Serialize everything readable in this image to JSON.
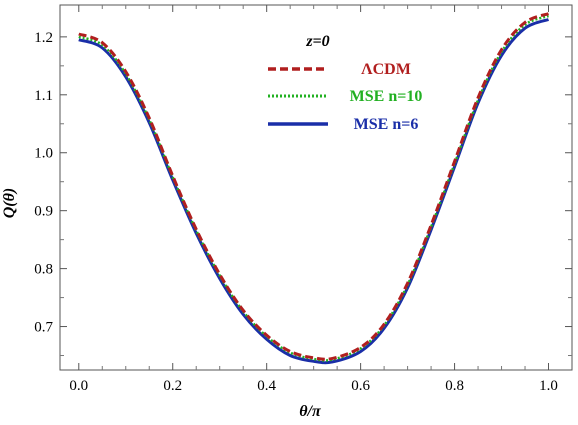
{
  "chart_data": {
    "type": "line",
    "xlabel": "θ/π",
    "ylabel": "Q(θ)",
    "xlim": [
      -0.04,
      1.05
    ],
    "ylim": [
      0.625,
      1.255
    ],
    "x_ticks": [
      0.0,
      0.2,
      0.4,
      0.6,
      0.8,
      1.0
    ],
    "x_tick_labels": [
      "0.0",
      "0.2",
      "0.4",
      "0.6",
      "0.8",
      "1.0"
    ],
    "y_ticks": [
      0.7,
      0.8,
      0.9,
      1.0,
      1.1,
      1.2
    ],
    "y_tick_labels": [
      "0.7",
      "0.8",
      "0.9",
      "1.0",
      "1.1",
      "1.2"
    ],
    "annotation": "z=0",
    "legend_position": "top-center",
    "grid": false,
    "series": [
      {
        "name": "ΛCDM",
        "color": "#b11f1f",
        "dash": "dashed",
        "x": [
          0.0,
          0.05,
          0.1,
          0.15,
          0.2,
          0.25,
          0.3,
          0.35,
          0.4,
          0.45,
          0.5,
          0.54,
          0.6,
          0.65,
          0.7,
          0.75,
          0.8,
          0.85,
          0.9,
          0.95,
          1.0
        ],
        "y": [
          1.205,
          1.19,
          1.14,
          1.06,
          0.96,
          0.868,
          0.79,
          0.728,
          0.685,
          0.657,
          0.646,
          0.645,
          0.664,
          0.704,
          0.775,
          0.875,
          0.985,
          1.095,
          1.178,
          1.225,
          1.24
        ]
      },
      {
        "name": "MSE n=10",
        "color": "#22b022",
        "dash": "dotted",
        "x": [
          0.0,
          0.05,
          0.1,
          0.15,
          0.2,
          0.25,
          0.3,
          0.35,
          0.4,
          0.45,
          0.5,
          0.54,
          0.6,
          0.65,
          0.7,
          0.75,
          0.8,
          0.85,
          0.9,
          0.95,
          1.0
        ],
        "y": [
          1.2,
          1.186,
          1.136,
          1.057,
          0.958,
          0.866,
          0.788,
          0.726,
          0.683,
          0.655,
          0.644,
          0.643,
          0.662,
          0.702,
          0.772,
          0.872,
          0.981,
          1.091,
          1.174,
          1.221,
          1.236
        ]
      },
      {
        "name": "MSE n=6",
        "color": "#1a2ea8",
        "dash": "solid",
        "x": [
          0.0,
          0.05,
          0.1,
          0.15,
          0.2,
          0.25,
          0.3,
          0.35,
          0.4,
          0.45,
          0.5,
          0.54,
          0.6,
          0.65,
          0.7,
          0.75,
          0.8,
          0.85,
          0.9,
          0.95,
          1.0
        ],
        "y": [
          1.195,
          1.181,
          1.131,
          1.052,
          0.953,
          0.861,
          0.783,
          0.721,
          0.678,
          0.65,
          0.64,
          0.639,
          0.657,
          0.697,
          0.767,
          0.867,
          0.976,
          1.086,
          1.168,
          1.215,
          1.23
        ]
      }
    ]
  }
}
